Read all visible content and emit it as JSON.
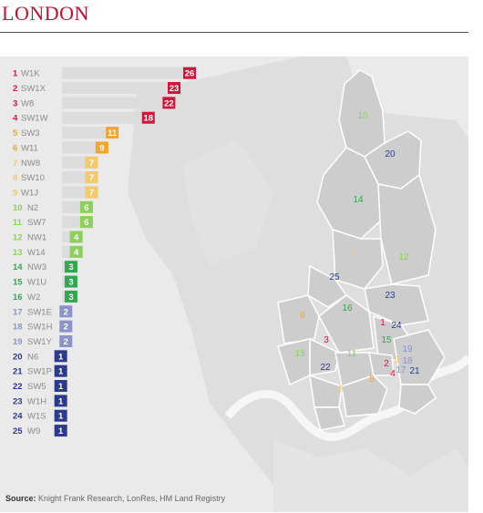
{
  "title": "LONDON",
  "source_label": "Source:",
  "source_text": " Knight Frank Research, LonRes, HM Land Registry",
  "colors": {
    "red": "#d0173b",
    "orange": "#f0a630",
    "yellow": "#f3c969",
    "lightgreen": "#8ccf5e",
    "green": "#2fa84f",
    "lavender": "#8b93c8",
    "navy": "#2c3a8c",
    "bar": "#dcdcdc",
    "map": "#cfcfcf",
    "water": "#f2f2f2"
  },
  "chart_data": {
    "type": "bar",
    "categories": [
      "W1K",
      "SW1X",
      "W8",
      "SW1W",
      "SW3",
      "W11",
      "NW8",
      "SW10",
      "W1J",
      "N2",
      "SW7",
      "NW1",
      "W14",
      "NW3",
      "W1U",
      "W2",
      "SW1E",
      "SW1H",
      "SW1Y",
      "N6",
      "SW1P",
      "SW5",
      "W1H",
      "W1S",
      "W9"
    ],
    "ranks": [
      "1",
      "2",
      "3",
      "4",
      "5",
      "6",
      "7",
      "8",
      "9",
      "10",
      "11",
      "12",
      "13",
      "14",
      "15",
      "16",
      "17",
      "18",
      "19",
      "20",
      "21",
      "22",
      "23",
      "24",
      "25"
    ],
    "values": [
      26,
      23,
      22,
      18,
      11,
      9,
      7,
      7,
      7,
      6,
      6,
      4,
      4,
      3,
      3,
      3,
      2,
      2,
      2,
      1,
      1,
      1,
      1,
      1,
      1
    ],
    "groups": [
      "red",
      "red",
      "red",
      "red",
      "orange",
      "orange",
      "yellow",
      "yellow",
      "yellow",
      "lightgreen",
      "lightgreen",
      "lightgreen",
      "lightgreen",
      "green",
      "green",
      "green",
      "lavender",
      "lavender",
      "lavender",
      "navy",
      "navy",
      "navy",
      "navy",
      "navy",
      "navy"
    ],
    "xlim": [
      0,
      26
    ]
  },
  "map_labels": [
    "10",
    "20",
    "14",
    "7",
    "12",
    "25",
    "23",
    "6",
    "16",
    "1",
    "24",
    "15",
    "13",
    "3",
    "11",
    "19",
    "2",
    "9",
    "18",
    "22",
    "17",
    "4",
    "21",
    "5",
    "8"
  ]
}
